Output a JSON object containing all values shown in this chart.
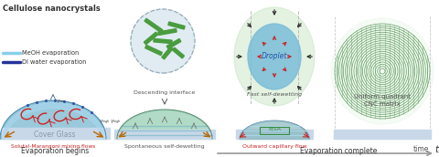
{
  "bg_color": "#ffffff",
  "text_cellulose": "Cellulose nanocrystals",
  "text_meoh": "MeOH evaporation",
  "text_di": "DI water evaporation",
  "text_cover_glass": "Cover Glass",
  "text_solutal": "Solutal-Marangoni mixing flows",
  "text_descending": "Descending interface",
  "text_spontaneous": "Spontaneous self-dewetting",
  "text_droplet": "Droplet",
  "text_fast": "Fast self-dewetting",
  "text_eisa": "EISA",
  "text_outward": "Outward capillary flow",
  "text_uniform": "Uniform quadrant",
  "text_cnc": "CNC matrix",
  "text_evap_begins": "Evaporation begins",
  "text_evap_complete": "Evaporation complete",
  "text_time": "time",
  "color_green_rod": "#4a9c3f",
  "color_circle_bg": "#c8dde8",
  "color_dashed_circle": "#9aabb8",
  "color_droplet_bg": "#c8e6c4",
  "color_droplet_blue": "#7bbdd8",
  "color_red_arrow": "#cc2222",
  "color_black_arrow": "#333333",
  "color_orange_arrow": "#bb6600",
  "color_meoh_line": "#87ceeb",
  "color_di_line": "#223399",
  "color_hump1_fill": "#78b8d0",
  "color_hump2_fill": "#88c8a8",
  "color_hump3_teal": "#88b8c0",
  "color_text_solutal": "#cc2222",
  "color_text_outward": "#cc2222",
  "color_concentric": "#5a9a5a",
  "color_eisa_box": "#3a8c3f",
  "color_glass": "#c8d8e8",
  "color_glass_text": "#8899aa",
  "color_axis": "#999999",
  "color_gray_text": "#555555",
  "color_dark_text": "#333333"
}
